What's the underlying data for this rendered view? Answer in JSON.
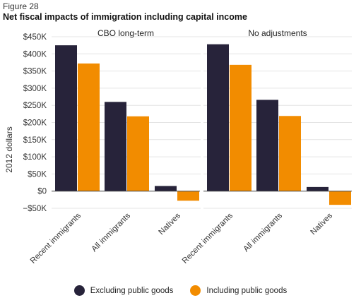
{
  "figure_label": "Figure 28",
  "chart_data": {
    "type": "bar",
    "title": "Net fiscal impacts of immigration including capital income",
    "ylabel": "2012 dollars",
    "ylim": [
      -50000,
      450000
    ],
    "yticks": [
      450000,
      400000,
      350000,
      300000,
      250000,
      200000,
      150000,
      100000,
      50000,
      0,
      -50000
    ],
    "ytick_labels": [
      "$450K",
      "$400K",
      "$350K",
      "$300K",
      "$250K",
      "$200K",
      "$150K",
      "$100K",
      "$50K",
      "$0",
      "−$50K"
    ],
    "grid": true,
    "legend_position": "bottom",
    "categories": [
      "Recent immigrants",
      "All immigrants",
      "Natives"
    ],
    "panels": [
      {
        "title": "CBO long-term",
        "series": [
          {
            "name": "Excluding public goods",
            "color": "#27233a",
            "values": [
              425000,
              260000,
              15000
            ]
          },
          {
            "name": "Including public goods",
            "color": "#f28c00",
            "values": [
              372000,
              218000,
              -28000
            ]
          }
        ]
      },
      {
        "title": "No adjustments",
        "series": [
          {
            "name": "Excluding public goods",
            "color": "#27233a",
            "values": [
              428000,
              266000,
              12000
            ]
          },
          {
            "name": "Including public goods",
            "color": "#f28c00",
            "values": [
              368000,
              219000,
              -40000
            ]
          }
        ]
      }
    ]
  }
}
